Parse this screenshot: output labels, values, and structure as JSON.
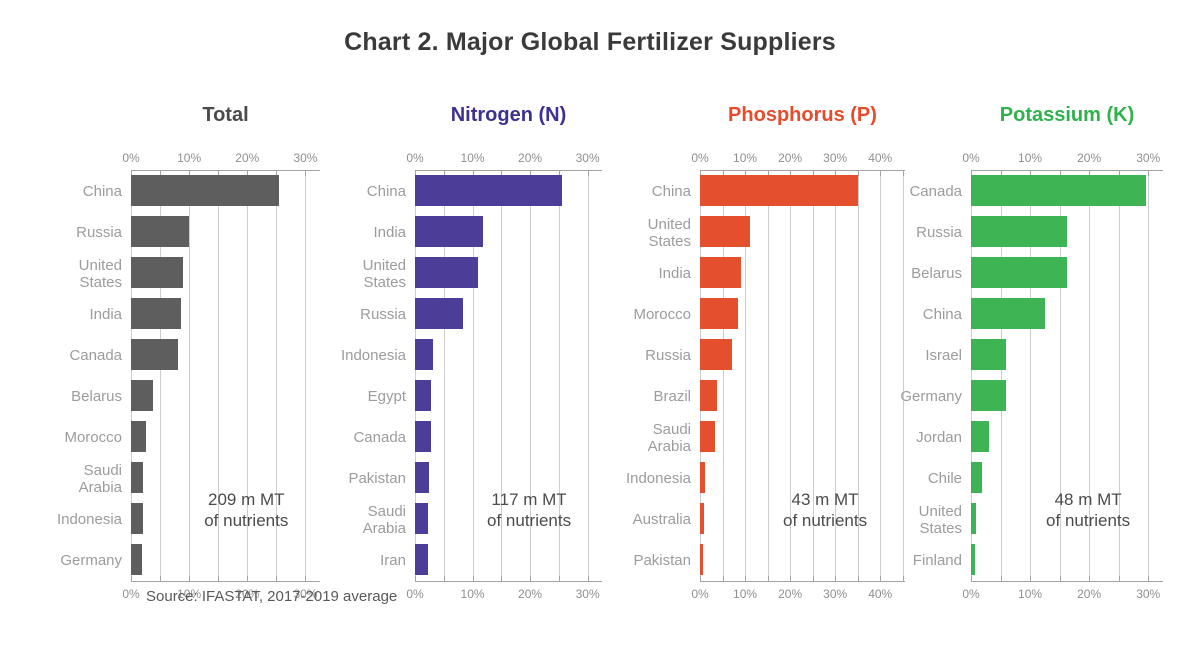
{
  "title": "Chart 2. Major Global Fertilizer Suppliers",
  "source": "Source: IFASTAT, 2017-2019 average",
  "axis_unit": "%",
  "chart_data": [
    {
      "type": "bar",
      "orientation": "horizontal",
      "title": "Total",
      "title_color": "#4a4a4a",
      "bar_color": "#5e5e5e",
      "annotation": {
        "line1": "209 m MT",
        "line2": "of nutrients"
      },
      "xlim": [
        0,
        32.5
      ],
      "tick_values": [
        0,
        10,
        20,
        30
      ],
      "tick_labels": [
        "0%",
        "10%",
        "20%",
        "30%"
      ],
      "grid_step": 5,
      "grid_max": 30,
      "categories": [
        "China",
        "Russia",
        "United States",
        "India",
        "Canada",
        "Belarus",
        "Morocco",
        "Saudi Arabia",
        "Indonesia",
        "Germany"
      ],
      "values": [
        25.5,
        10.0,
        8.9,
        8.6,
        8.0,
        3.8,
        2.6,
        2.1,
        2.0,
        1.9
      ]
    },
    {
      "type": "bar",
      "orientation": "horizontal",
      "title": "Nitrogen (N)",
      "title_color": "#3e3192",
      "bar_color": "#4c3d99",
      "annotation": {
        "line1": "117 m MT",
        "line2": "of nutrients"
      },
      "xlim": [
        0,
        32.5
      ],
      "tick_values": [
        0,
        10,
        20,
        30
      ],
      "tick_labels": [
        "0%",
        "10%",
        "20%",
        "30%"
      ],
      "grid_step": 5,
      "grid_max": 30,
      "categories": [
        "China",
        "India",
        "United States",
        "Russia",
        "Indonesia",
        "Egypt",
        "Canada",
        "Pakistan",
        "Saudi Arabia",
        "Iran"
      ],
      "values": [
        25.6,
        11.8,
        10.9,
        8.4,
        3.1,
        2.8,
        2.8,
        2.5,
        2.3,
        2.2
      ]
    },
    {
      "type": "bar",
      "orientation": "horizontal",
      "title": "Phosphorus (P)",
      "title_color": "#e74b2b",
      "bar_color": "#e4502e",
      "annotation": {
        "line1": "43 m MT",
        "line2": "of nutrients"
      },
      "xlim": [
        0,
        45.5
      ],
      "tick_values": [
        0,
        10,
        20,
        30,
        40
      ],
      "tick_labels": [
        "0%",
        "10%",
        "20%",
        "30%",
        "40%"
      ],
      "grid_step": 5,
      "grid_max": 45,
      "categories": [
        "China",
        "United States",
        "India",
        "Morocco",
        "Russia",
        "Brazil",
        "Saudi Arabia",
        "Indonesia",
        "Australia",
        "Pakistan"
      ],
      "values": [
        35.0,
        11.1,
        9.1,
        8.4,
        7.2,
        3.7,
        3.3,
        1.0,
        0.8,
        0.7
      ]
    },
    {
      "type": "bar",
      "orientation": "horizontal",
      "title": "Potassium (K)",
      "title_color": "#2fb14b",
      "bar_color": "#3fb455",
      "annotation": {
        "line1": "48 m MT",
        "line2": "of nutrients"
      },
      "xlim": [
        0,
        32.5
      ],
      "tick_values": [
        0,
        10,
        20,
        30
      ],
      "tick_labels": [
        "0%",
        "10%",
        "20%",
        "30%"
      ],
      "grid_step": 5,
      "grid_max": 30,
      "categories": [
        "Canada",
        "Russia",
        "Belarus",
        "China",
        "Israel",
        "Germany",
        "Jordan",
        "Chile",
        "United States",
        "Finland"
      ],
      "values": [
        29.6,
        16.2,
        16.2,
        12.5,
        6.0,
        5.9,
        3.0,
        1.9,
        0.8,
        0.6
      ]
    }
  ]
}
